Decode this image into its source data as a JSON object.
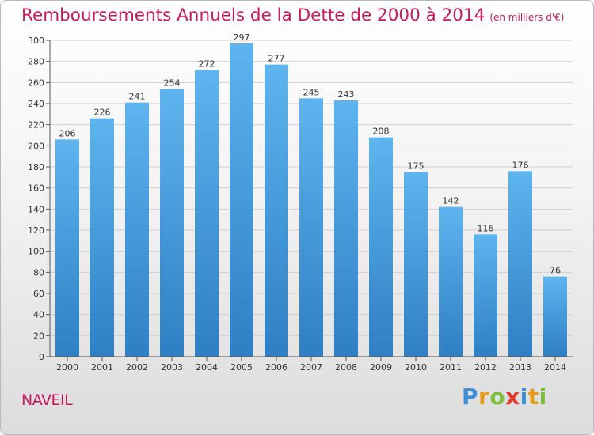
{
  "chart_data": {
    "type": "bar",
    "title": "Remboursements Annuels de la Dette de 2000 à 2014",
    "subtitle": "(en milliers d'€)",
    "categories": [
      "2000",
      "2001",
      "2002",
      "2003",
      "2004",
      "2005",
      "2006",
      "2007",
      "2008",
      "2009",
      "2010",
      "2011",
      "2012",
      "2013",
      "2014"
    ],
    "values": [
      206,
      226,
      241,
      254,
      272,
      297,
      277,
      245,
      243,
      208,
      175,
      142,
      116,
      176,
      76
    ],
    "ylim": [
      0,
      300
    ],
    "yticks": [
      0,
      20,
      40,
      60,
      80,
      100,
      120,
      140,
      160,
      180,
      200,
      220,
      240,
      260,
      280,
      300
    ],
    "grid": true,
    "bar_color_top": "#5eb4ee",
    "bar_color_bottom": "#2f7fc4"
  },
  "footer": {
    "commune": "NAVEIL",
    "logo_letters": [
      {
        "char": "P",
        "color": "#3a8fd8"
      },
      {
        "char": "r",
        "color": "#e89a1a"
      },
      {
        "char": "o",
        "color": "#7bbf3a"
      },
      {
        "char": "x",
        "color": "#e23b2c"
      },
      {
        "char": "i",
        "color": "#3a8fd8"
      },
      {
        "char": "t",
        "color": "#e89a1a"
      },
      {
        "char": "i",
        "color": "#7bbf3a"
      }
    ]
  }
}
